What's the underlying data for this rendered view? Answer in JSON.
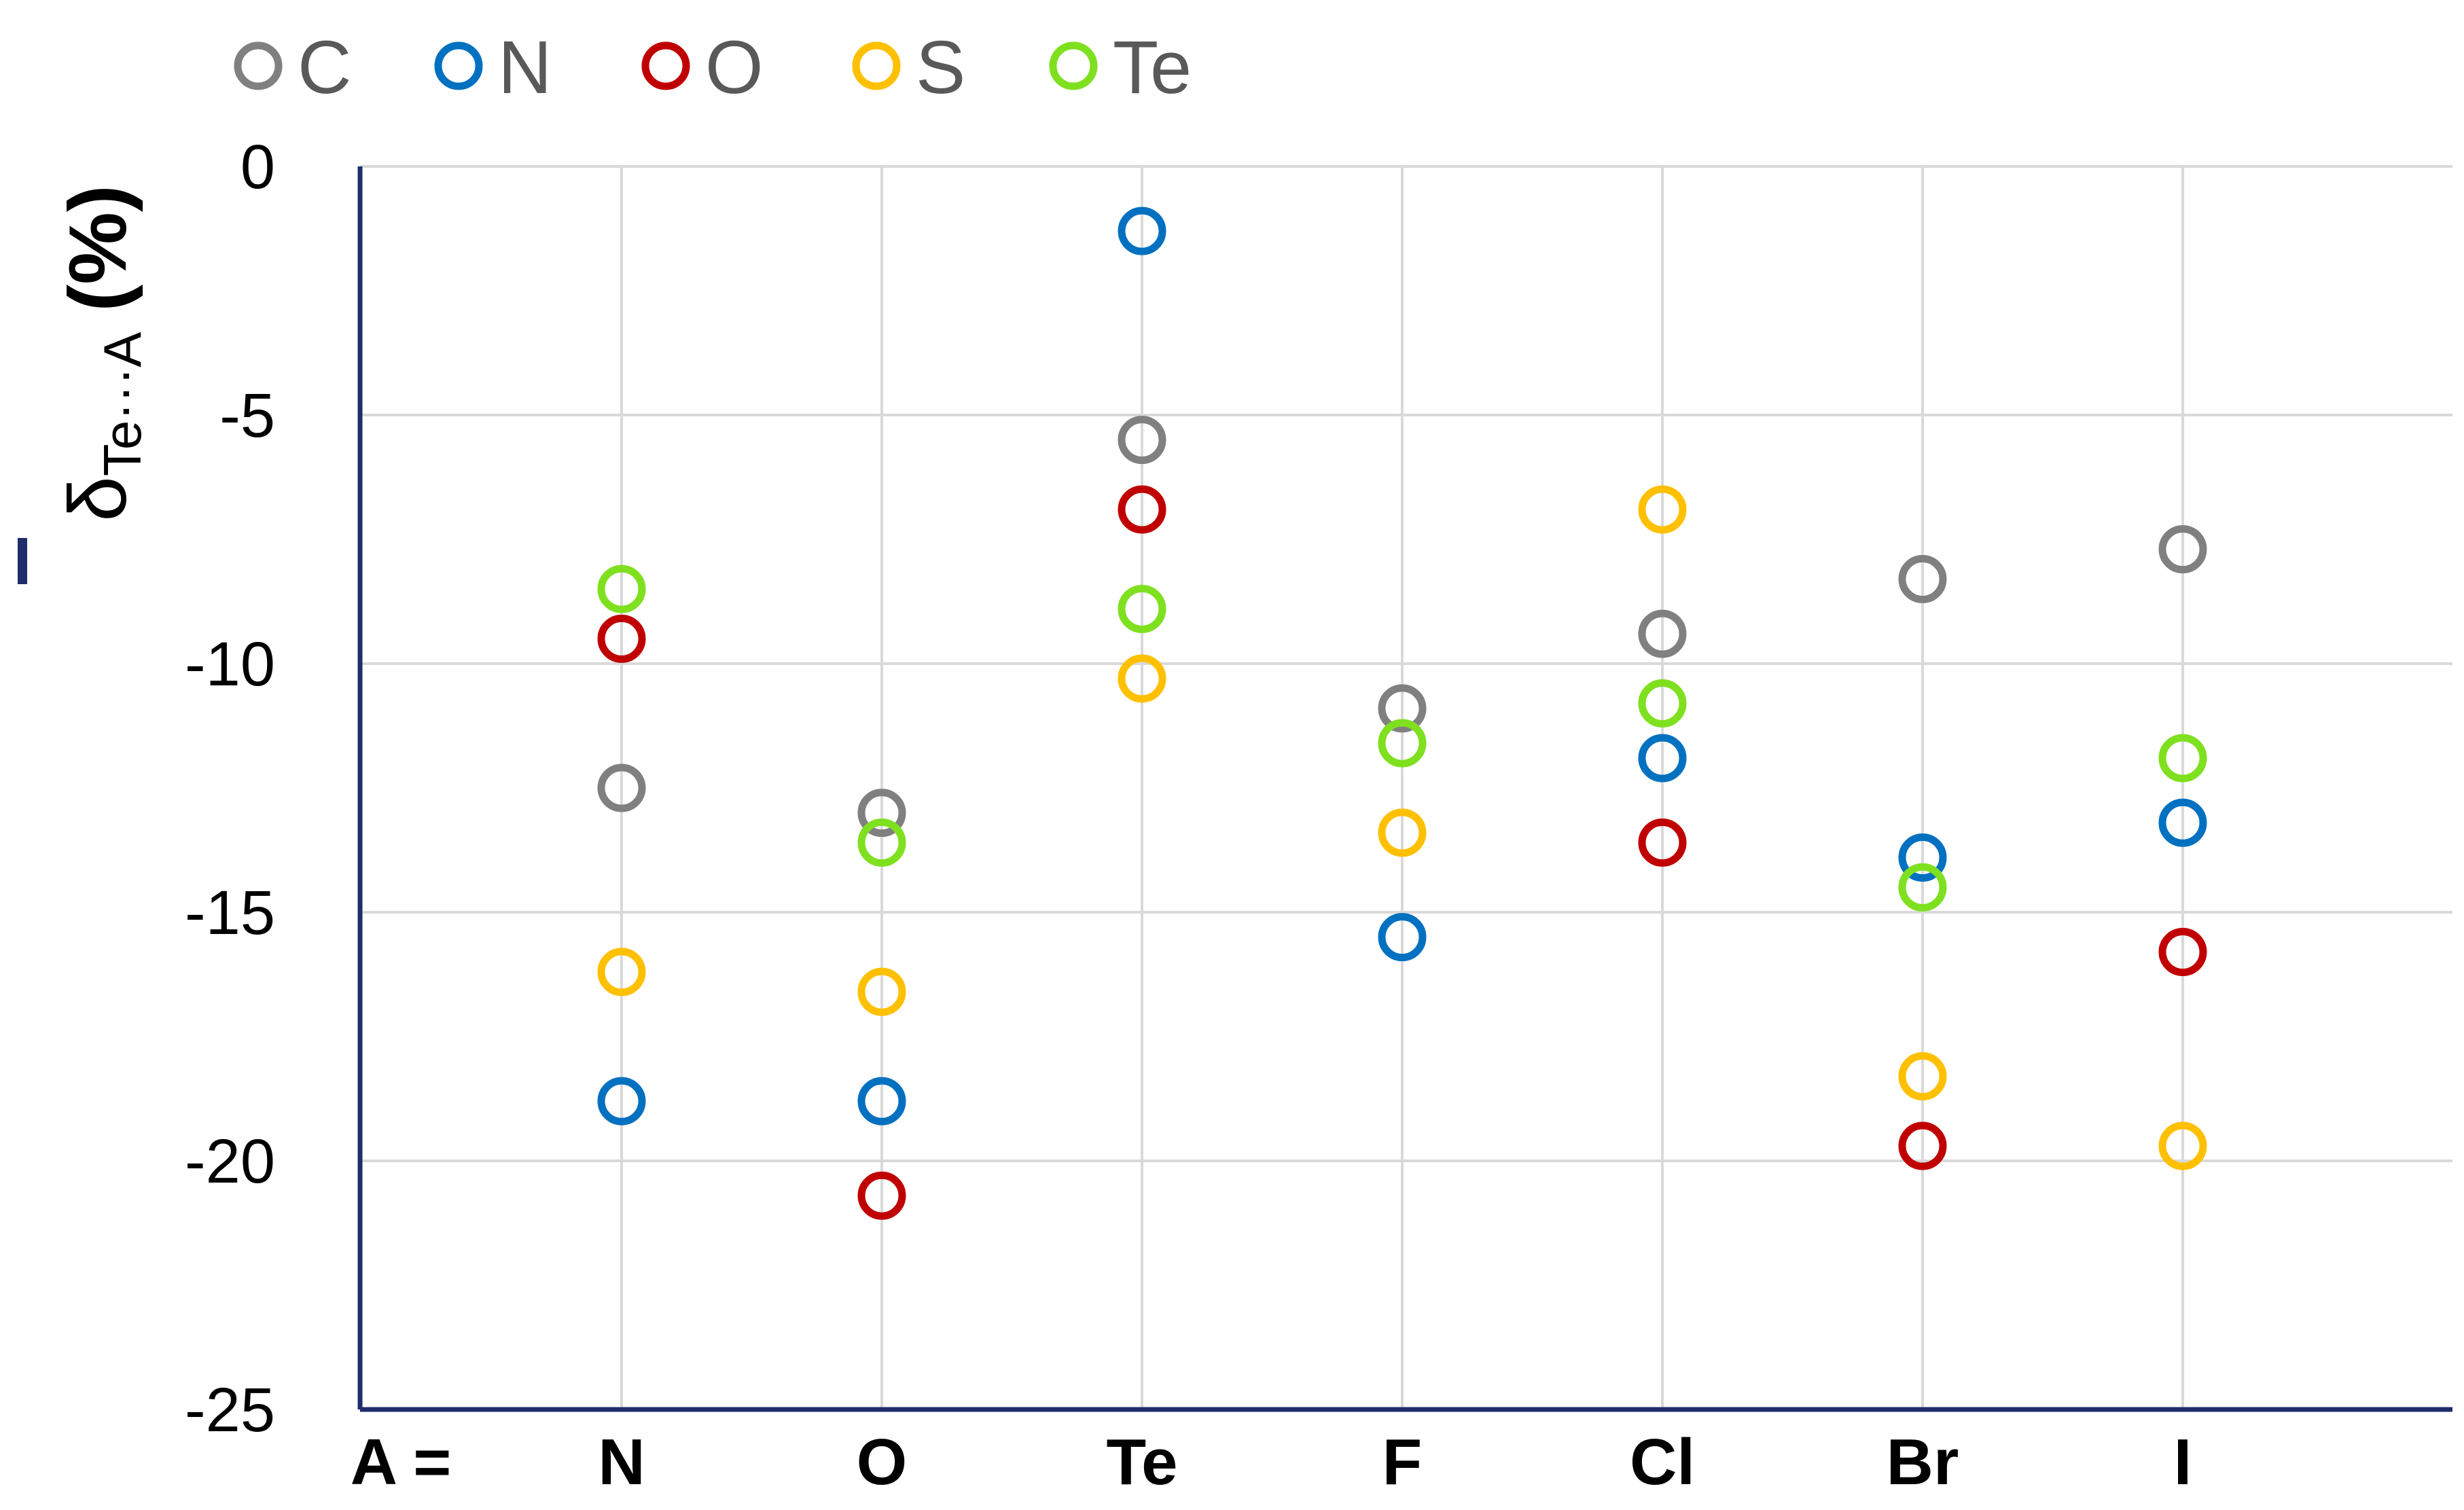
{
  "chart_data": {
    "type": "scatter",
    "categories": [
      "N",
      "O",
      "Te",
      "F",
      "Cl",
      "Br",
      "I"
    ],
    "category_prefix": "A =",
    "ylabel": {
      "symbol": "δ",
      "subscript": "Te···A",
      "unit": "(%)"
    },
    "ylim": [
      -25,
      0
    ],
    "yticks": [
      0,
      -5,
      -10,
      -15,
      -20,
      -25
    ],
    "grid": true,
    "legend_position": "top-left",
    "series": [
      {
        "name": "C",
        "color": "#808080",
        "values": [
          -12.5,
          -13.0,
          -5.5,
          -10.9,
          -9.4,
          -8.3,
          -7.7
        ]
      },
      {
        "name": "N",
        "color": "#0070C0",
        "values": [
          -18.8,
          -18.8,
          -1.3,
          -15.5,
          -11.9,
          -13.9,
          -13.2
        ]
      },
      {
        "name": "O",
        "color": "#C00000",
        "values": [
          -9.5,
          -20.7,
          -6.9,
          null,
          -13.6,
          -19.7,
          -15.8
        ]
      },
      {
        "name": "S",
        "color": "#FFC000",
        "values": [
          -16.2,
          -16.6,
          -10.3,
          -13.4,
          -6.9,
          -18.3,
          -19.7
        ]
      },
      {
        "name": "Te",
        "color": "#7FE01F",
        "values": [
          -8.5,
          -13.6,
          -8.9,
          -11.6,
          -10.8,
          -14.5,
          -11.9
        ]
      }
    ]
  },
  "colors": {
    "axis": "#1F2D6B",
    "grid": "#D9D9D9"
  }
}
